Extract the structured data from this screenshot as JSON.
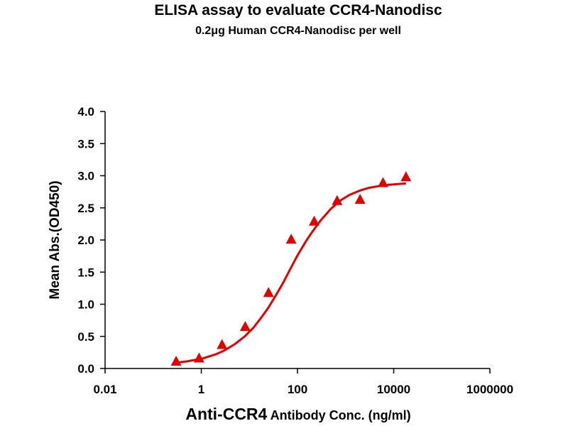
{
  "chart_data": {
    "type": "scatter",
    "title": "ELISA assay to evaluate CCR4-Nanodisc",
    "subtitle": "0.2μg Human CCR4-Nanodisc per well",
    "xlabel_main": "Anti-CCR4",
    "xlabel_rest": " Antibody Conc. (ng/ml)",
    "ylabel": "Mean Abs.(OD450)",
    "x_scale": "log",
    "xlim": [
      0.01,
      1000000
    ],
    "ylim": [
      0,
      4.0
    ],
    "x_ticks": [
      0.01,
      1,
      100,
      10000,
      1000000
    ],
    "x_tick_labels": [
      "0.01",
      "1",
      "100",
      "10000",
      "1000000"
    ],
    "y_ticks": [
      0,
      0.5,
      1.0,
      1.5,
      2.0,
      2.5,
      3.0,
      3.5,
      4.0
    ],
    "y_tick_labels": [
      "0.0",
      "0.5",
      "1.0",
      "1.5",
      "2.0",
      "2.5",
      "3.0",
      "3.5",
      "4.0"
    ],
    "grid": false,
    "legend": "none",
    "marker": "triangle",
    "color": "#e00000",
    "series": [
      {
        "x": [
          0.3,
          0.9,
          2.7,
          8.2,
          25,
          74,
          222,
          667,
          2000,
          6000,
          18000
        ],
        "y": [
          0.11,
          0.16,
          0.37,
          0.65,
          1.18,
          2.01,
          2.29,
          2.61,
          2.63,
          2.89,
          2.98
        ]
      }
    ],
    "fit_curve": {
      "type": "4PL",
      "x": [
        0.3,
        0.5,
        1,
        2,
        3,
        5,
        8,
        12,
        18,
        25,
        35,
        50,
        70,
        100,
        150,
        200,
        300,
        500,
        800,
        1200,
        2000,
        3000,
        5000,
        8000,
        12000,
        18000
      ],
      "y": [
        0.09,
        0.11,
        0.15,
        0.22,
        0.28,
        0.38,
        0.5,
        0.63,
        0.8,
        0.95,
        1.13,
        1.33,
        1.54,
        1.76,
        1.98,
        2.12,
        2.3,
        2.49,
        2.62,
        2.7,
        2.77,
        2.81,
        2.84,
        2.86,
        2.87,
        2.88
      ]
    }
  }
}
